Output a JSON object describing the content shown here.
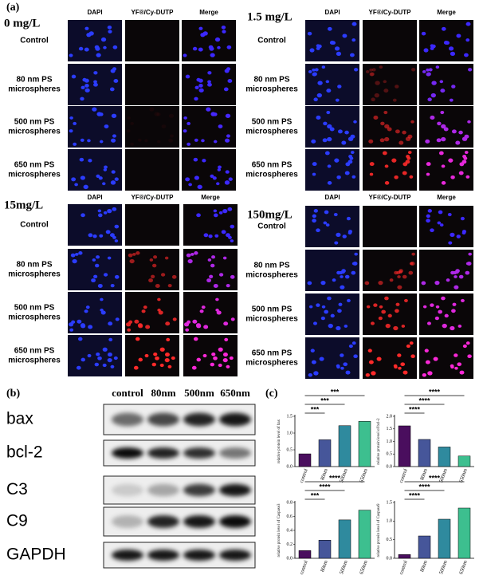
{
  "panel_a": {
    "label": "(a)",
    "headers": [
      "DAPI",
      "YF®/Cy-DUTP",
      "Merge"
    ],
    "row_labels": [
      [
        "Control"
      ],
      [
        "80 nm PS",
        "microspheres"
      ],
      [
        "500 nm PS",
        "microspheres"
      ],
      [
        "650 nm PS",
        "microspheres"
      ]
    ],
    "concentrations": [
      "0 mg/L",
      "1.5 mg/L",
      "15mg/L",
      "150mg/L"
    ]
  },
  "panel_b": {
    "label": "(b)",
    "columns": [
      "control",
      "80nm",
      "500nm",
      "650nm"
    ],
    "rows": [
      "bax",
      "bcl-2",
      "C3",
      "C9",
      "GAPDH"
    ]
  },
  "panel_c": {
    "label": "(c)"
  },
  "chart_data": [
    {
      "type": "bar",
      "ylabel": "relative protein level of bax",
      "categories": [
        "control",
        "80nm",
        "500nm",
        "650nm"
      ],
      "values": [
        0.38,
        0.8,
        1.22,
        1.35
      ],
      "colors": [
        "#4a0e5e",
        "#46569a",
        "#2f8a9e",
        "#3dbf8f"
      ],
      "ylim": [
        0,
        1.5
      ],
      "yticks": [
        {
          "value": 0,
          "label": "0.0"
        },
        {
          "value": 0.5,
          "label": "0.5"
        },
        {
          "value": 1,
          "label": "1.0"
        },
        {
          "value": 1.5,
          "label": "1.5"
        }
      ],
      "annotations": [
        "***",
        "***",
        "***"
      ]
    },
    {
      "type": "bar",
      "ylabel": "relative protein level of bcl-2",
      "categories": [
        "control",
        "80nm",
        "500nm",
        "650nm"
      ],
      "values": [
        1.62,
        1.08,
        0.78,
        0.42
      ],
      "colors": [
        "#4a0e5e",
        "#46569a",
        "#2f8a9e",
        "#3dbf8f"
      ],
      "ylim": [
        0,
        2
      ],
      "yticks": [
        {
          "value": 0,
          "label": "0.0"
        },
        {
          "value": 0.5,
          "label": "0.5"
        },
        {
          "value": 1,
          "label": "1.0"
        },
        {
          "value": 1.5,
          "label": "1.5"
        },
        {
          "value": 2,
          "label": "2.0"
        }
      ],
      "annotations": [
        "****",
        "****",
        "****"
      ]
    },
    {
      "type": "bar",
      "ylabel": "relative protein level of Caspase3",
      "categories": [
        "control",
        "80nm",
        "500nm",
        "650nm"
      ],
      "values": [
        0.11,
        0.26,
        0.55,
        0.69
      ],
      "colors": [
        "#4a0e5e",
        "#46569a",
        "#2f8a9e",
        "#3dbf8f"
      ],
      "ylim": [
        0,
        0.8
      ],
      "yticks": [
        {
          "value": 0,
          "label": "0.0"
        },
        {
          "value": 0.2,
          "label": "0.2"
        },
        {
          "value": 0.4,
          "label": "0.4"
        },
        {
          "value": 0.6,
          "label": "0.6"
        },
        {
          "value": 0.8,
          "label": "0.8"
        }
      ],
      "annotations": [
        "***",
        "****",
        "****"
      ]
    },
    {
      "type": "bar",
      "ylabel": "relative protein level of Caspase9",
      "categories": [
        "control",
        "80nm",
        "500nm",
        "650nm"
      ],
      "values": [
        0.1,
        0.6,
        1.05,
        1.35
      ],
      "colors": [
        "#4a0e5e",
        "#46569a",
        "#2f8a9e",
        "#3dbf8f"
      ],
      "ylim": [
        0,
        1.5
      ],
      "yticks": [
        {
          "value": 0,
          "label": "0.0"
        },
        {
          "value": 0.5,
          "label": "0.5"
        },
        {
          "value": 1,
          "label": "1.0"
        },
        {
          "value": 1.5,
          "label": "1.5"
        }
      ],
      "annotations": [
        "****",
        "****",
        "****"
      ]
    }
  ]
}
